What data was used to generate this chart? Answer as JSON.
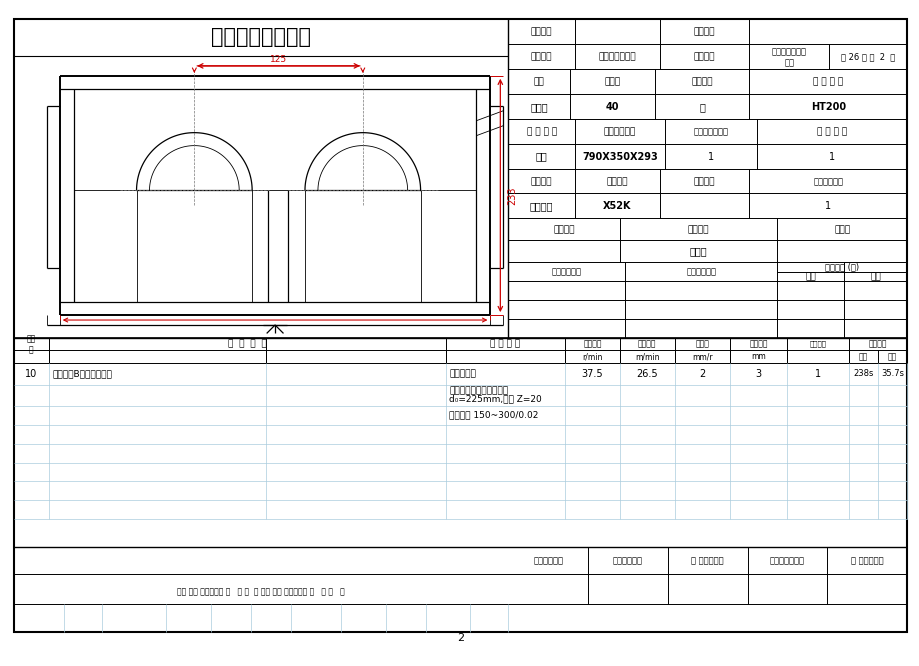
{
  "title": "机械加工工序卡片",
  "page_bg": "#ffffff",
  "border_color": "#000000",
  "light_grid_color": "#add8e6",
  "product_model_label": "产品型号",
  "part_drawing_label": "零件图号",
  "product_name_label": "产品名称",
  "product_name_value": "圆锥齿轮减速器",
  "part_name_label": "零件名称",
  "part_name_value": "圆锥齿轮减速器\n机座",
  "total_pages_text": "共 26 页 第  2  页",
  "workshop_label": "车间",
  "workshop_value": "机加工",
  "op_no_label": "工序号",
  "op_no_value": "40",
  "op_name_label": "工序名称",
  "op_name_value": "铣",
  "material_label": "材 料 牌 号",
  "material_value": "HT200",
  "blank_type_label": "毛 坯 种 类",
  "blank_type_value": "铸件",
  "blank_size_label": "毛坯外形尺寸",
  "blank_size_value": "790X350X293",
  "blank_per_label": "每毛坯可制件数",
  "blank_per_value": "1",
  "per_machine_label": "每 台 件 数",
  "per_machine_value": "1",
  "equip_name_label": "设备名称",
  "equip_name_value": "立式铣床",
  "equip_model_label": "设备型号",
  "equip_model_value": "X52K",
  "equip_no_label": "设备编号",
  "simultaneous_label": "同时加工件数",
  "simultaneous_value": "1",
  "fixture_no_label": "夹具编号",
  "fixture_name_label": "夹具名称",
  "fixture_name_value": "铣夹具",
  "coolant_label": "切削液",
  "tool_no_label": "工位器具编号",
  "tool_name_label": "工位器具名称",
  "time_label": "工序工时 (分)",
  "time_final_label": "准终",
  "time_single_label": "单件",
  "proc_step_label": "工步\n号",
  "proc_content_label": "工  步  内  容",
  "proc_equip_label": "工 艺 装 备",
  "proc_spindle_label": "主轴转速",
  "proc_spindle_unit": "r/min",
  "proc_cutting_label": "切削速度",
  "proc_cutting_unit": "m/min",
  "proc_feed_label": "进给量",
  "proc_feed_unit": "mm/r",
  "proc_depth_label": "切削深度",
  "proc_depth_unit": "mm",
  "proc_passes_label": "进给次数",
  "proc_time_label": "工步工时",
  "proc_machine_label": "机动",
  "proc_aux_label": "辅助",
  "step_no": "10",
  "step_content": "粗铣顶面B达到图示要求",
  "step_equip": "专用铣夹具",
  "step_spindle": "37.5",
  "step_cutting": "26.5",
  "step_feed": "2",
  "step_depth": "3",
  "step_passes": "1",
  "step_machine": "238s",
  "step_aux": "35.7s",
  "tool_line1": "高速钢镶齿三面刃铣刀，",
  "tool_line2": "d₀=225mm,齿数 Z=20",
  "tool_line3": "游标卡尺 150~300/0.02",
  "footer_labels": [
    "设计（日期）",
    "校对（日期）",
    "审 核（日期）",
    "标准化（日期）",
    "会 签（日期）"
  ],
  "bottom_text": "标记 处数 更改文件号 签   字 日  期 标记 处数 更改文件号 签   字 日   期",
  "page_number": "2",
  "red_color": "#cc0000",
  "dim_125": "125",
  "dim_233": "233"
}
